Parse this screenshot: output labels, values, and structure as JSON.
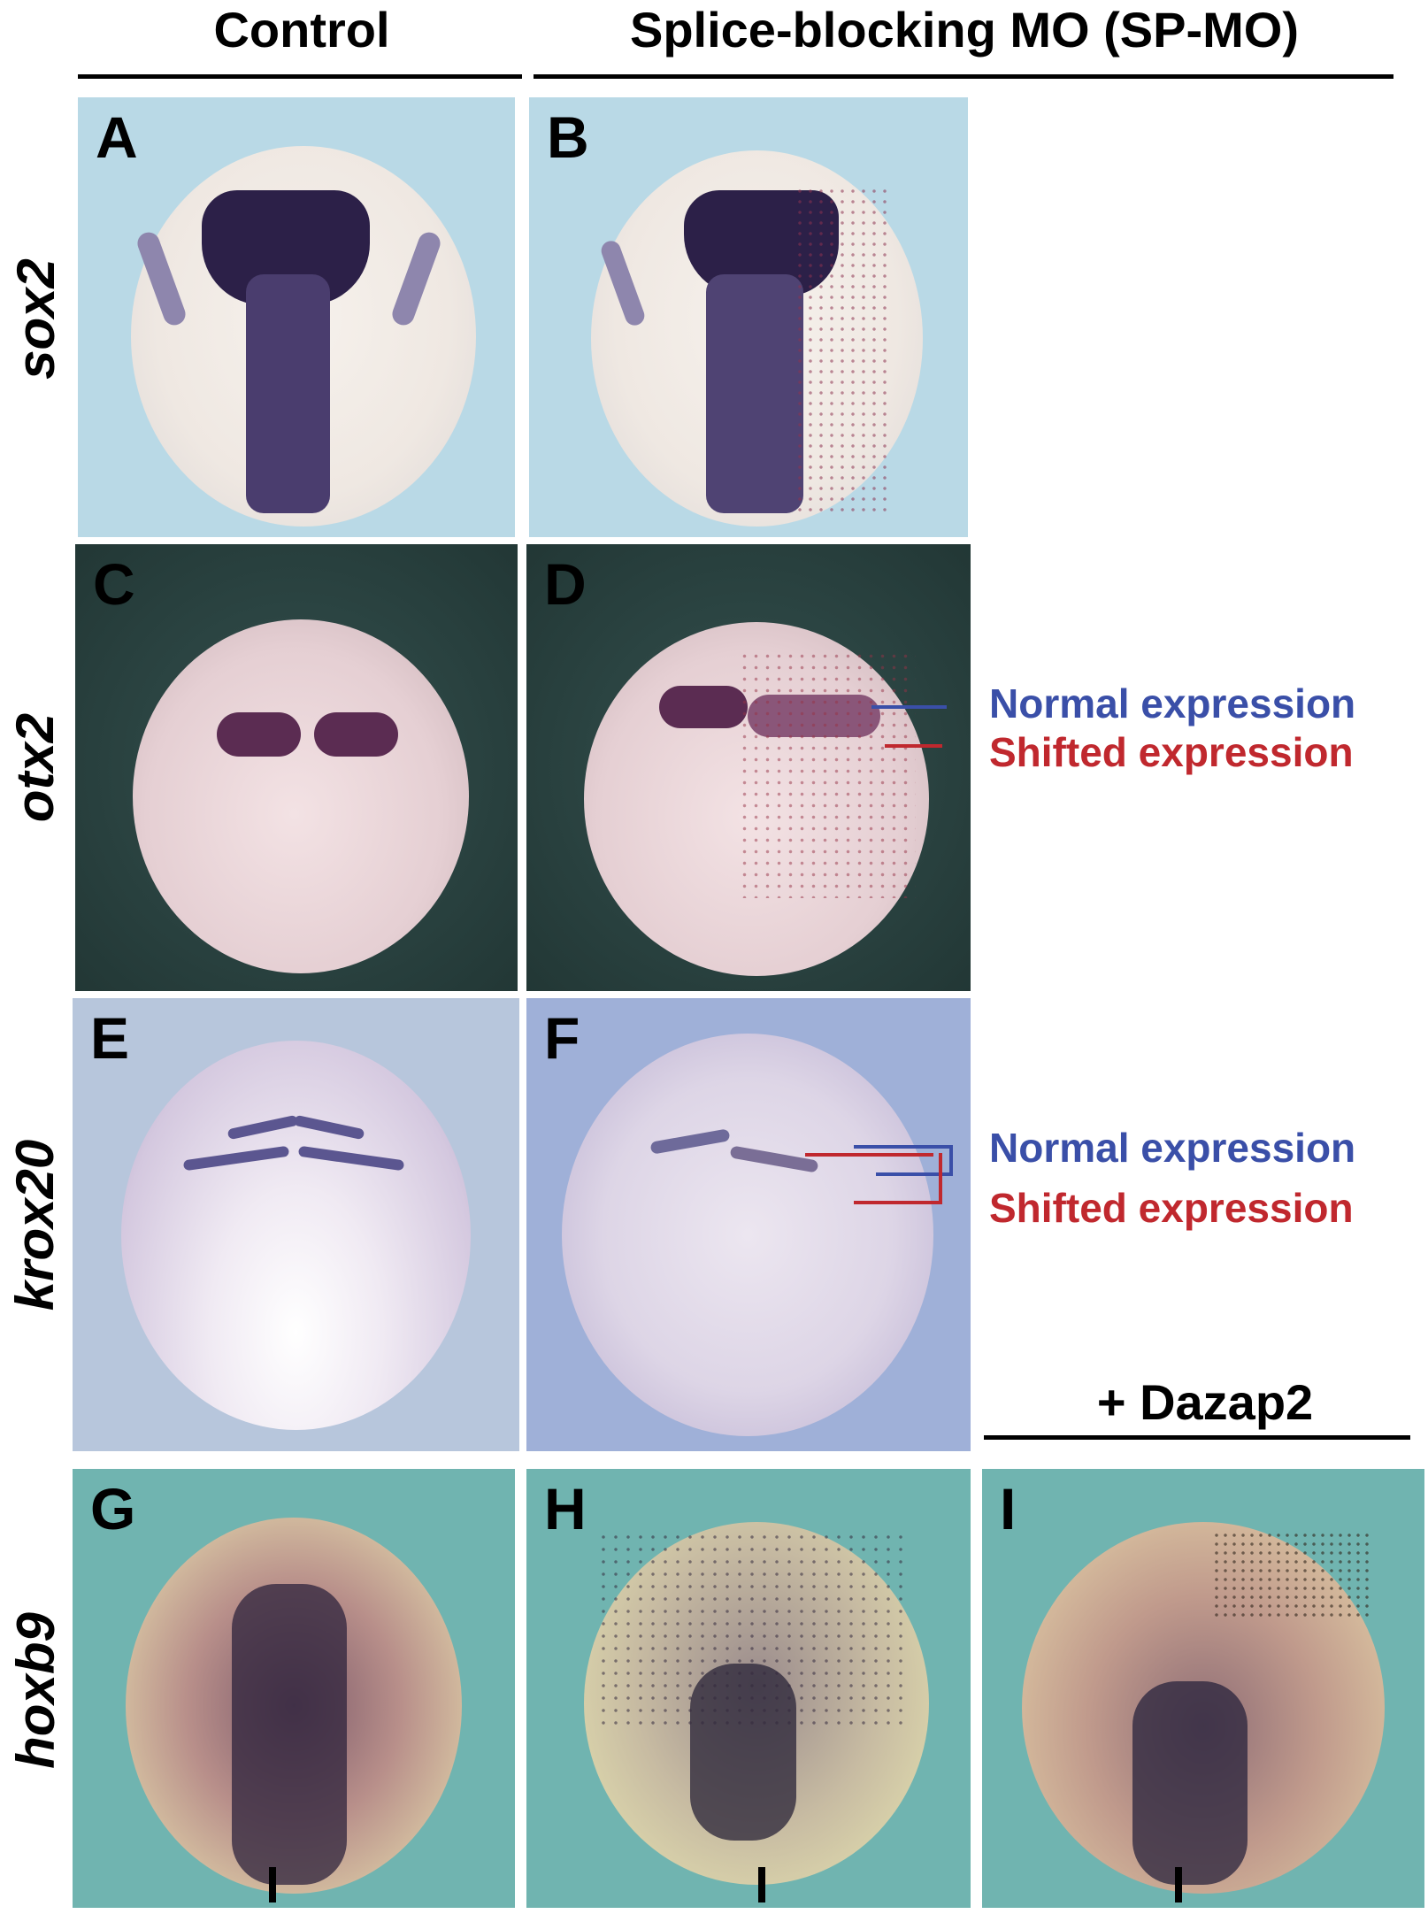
{
  "columns": {
    "control": "Control",
    "splice_blocking": "Splice-blocking MO (SP-MO)",
    "rescue": "+ Dazap2"
  },
  "rows": {
    "sox2": "sox2",
    "otx2": "otx2",
    "krox20": "krox20",
    "hoxb9": "hoxb9"
  },
  "panels": {
    "A": "A",
    "B": "B",
    "C": "C",
    "D": "D",
    "E": "E",
    "F": "F",
    "G": "G",
    "H": "H",
    "I": "I"
  },
  "legend": {
    "normal": "Normal expression",
    "shifted": "Shifted expression"
  },
  "colors": {
    "normal": "#3a4fa8",
    "shifted": "#c0282e"
  }
}
